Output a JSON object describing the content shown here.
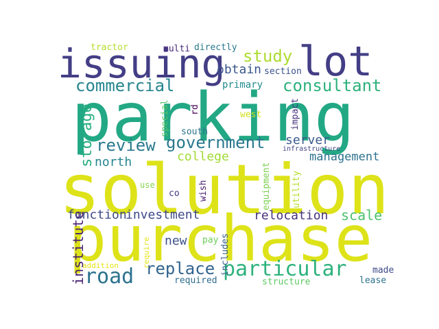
{
  "words": [
    {
      "text": "parking",
      "color": "#22a884"
    },
    {
      "text": "solution",
      "color": "#dde318"
    },
    {
      "text": "purchase",
      "color": "#dde318"
    },
    {
      "text": "issuing",
      "color": "#433e85"
    },
    {
      "text": "lot",
      "color": "#433e85"
    },
    {
      "text": "particular",
      "color": "#2db27d"
    },
    {
      "text": "government",
      "color": "#2a788e"
    },
    {
      "text": "consultant",
      "color": "#2db27d"
    },
    {
      "text": "commercial",
      "color": "#25858e"
    },
    {
      "text": "road",
      "color": "#2c728e"
    },
    {
      "text": "replace",
      "color": "#32648e"
    },
    {
      "text": "study",
      "color": "#addc30"
    },
    {
      "text": "review",
      "color": "#29798e"
    },
    {
      "text": "storage",
      "color": "#27ad81"
    },
    {
      "text": "institute",
      "color": "#482173"
    },
    {
      "text": "relocation",
      "color": "#46327e"
    },
    {
      "text": "investment",
      "color": "#3e4989"
    },
    {
      "text": "function",
      "color": "#3e4989"
    },
    {
      "text": "management",
      "color": "#2c728e"
    },
    {
      "text": "college",
      "color": "#a2da37"
    },
    {
      "text": "north",
      "color": "#25858e"
    },
    {
      "text": "server",
      "color": "#38598c"
    },
    {
      "text": "scale",
      "color": "#4ac16d"
    },
    {
      "text": "obtain",
      "color": "#39568c"
    },
    {
      "text": "new",
      "color": "#3b528b"
    },
    {
      "text": "primary",
      "color": "#228c8d"
    },
    {
      "text": "section",
      "color": "#3b528b"
    },
    {
      "text": "made",
      "color": "#3e4a89"
    },
    {
      "text": "lease",
      "color": "#2c728e"
    },
    {
      "text": "structure",
      "color": "#5ec962"
    },
    {
      "text": "required",
      "color": "#2f6c8e"
    },
    {
      "text": "pay",
      "color": "#6ccd5a"
    },
    {
      "text": "includes",
      "color": "#355f8d"
    },
    {
      "text": "equipment",
      "color": "#7ad151"
    },
    {
      "text": "utility",
      "color": "#b5de2b"
    },
    {
      "text": "impact",
      "color": "#46337e"
    },
    {
      "text": "west",
      "color": "#d0e11c"
    },
    {
      "text": "south",
      "color": "#2c738e"
    },
    {
      "text": "special",
      "color": "#54c568"
    },
    {
      "text": "rd",
      "color": "#440154"
    },
    {
      "text": "directly",
      "color": "#2a788e"
    },
    {
      "text": "multi",
      "color": "#482878"
    },
    {
      "text": "tractor",
      "color": "#b5de2b"
    },
    {
      "text": "infrastructure",
      "color": "#414487"
    },
    {
      "text": "wish",
      "color": "#481c6e"
    },
    {
      "text": "co",
      "color": "#443983"
    },
    {
      "text": "use",
      "color": "#84d44b"
    },
    {
      "text": "require",
      "color": "#e5e419"
    },
    {
      "text": "addition",
      "color": "#e5e419"
    }
  ]
}
